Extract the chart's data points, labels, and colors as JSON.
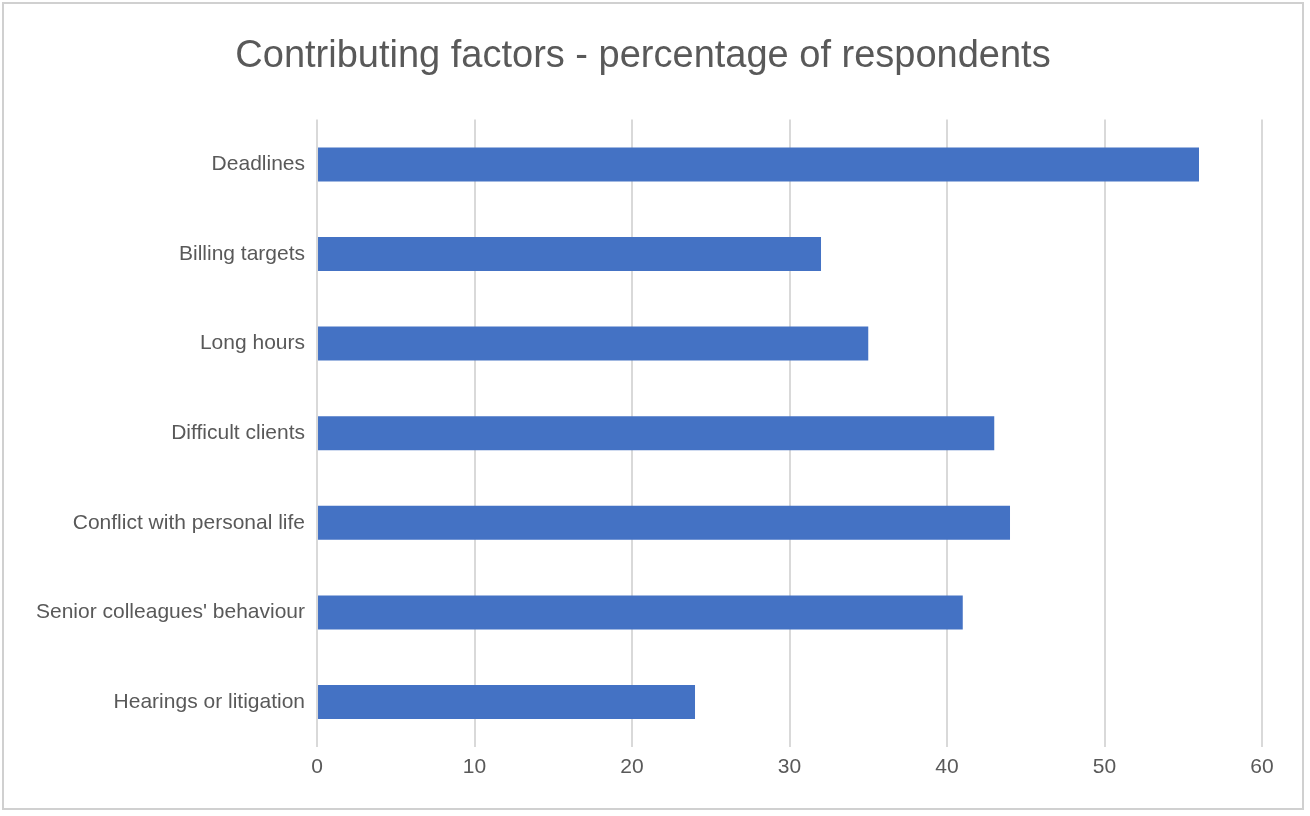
{
  "chart_data": {
    "type": "bar",
    "orientation": "horizontal",
    "title": "Contributing factors - percentage of respondents",
    "categories": [
      "Deadlines",
      "Billing targets",
      "Long hours",
      "Difficult clients",
      "Conflict with personal life",
      "Senior colleagues' behaviour",
      "Hearings or litigation"
    ],
    "values": [
      56,
      32,
      35,
      43,
      44,
      41,
      24
    ],
    "color": "#4472c4",
    "xlim": [
      0,
      60
    ],
    "xticks": [
      0,
      10,
      20,
      30,
      40,
      50,
      60
    ],
    "grid": "x",
    "legend": false
  }
}
